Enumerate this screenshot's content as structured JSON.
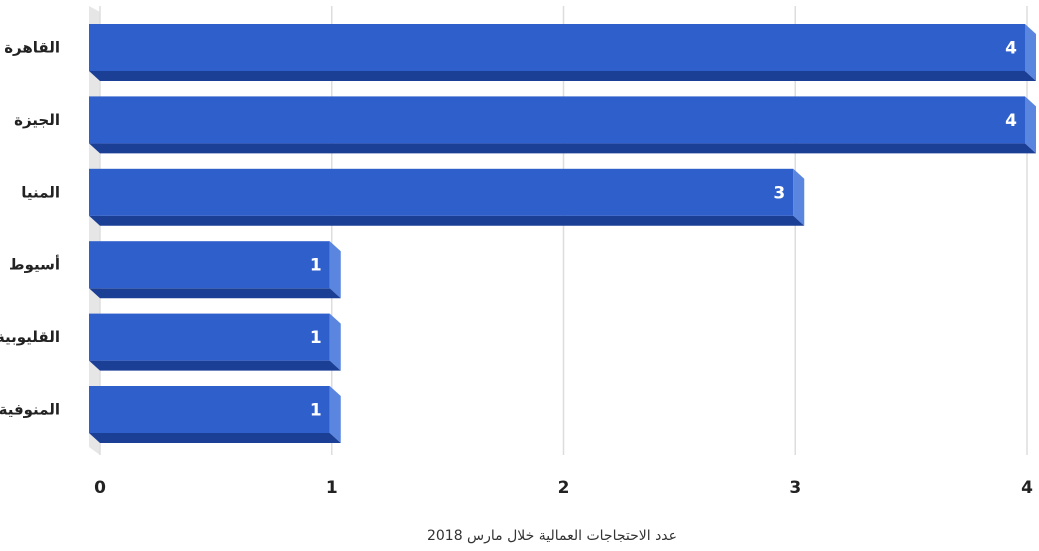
{
  "chart_data": {
    "type": "bar",
    "orientation": "horizontal",
    "categories": [
      "القاهرة",
      "الجيزة",
      "المنيا",
      "أسيوط",
      "القليوبية",
      "المنوفية"
    ],
    "values": [
      4,
      4,
      3,
      1,
      1,
      1
    ],
    "xlabel": "عدد الاحتجاجات العمالية خلال مارس 2018",
    "ylabel": "",
    "xlim": [
      0,
      4
    ],
    "xticks": [
      "0",
      "1",
      "2",
      "3",
      "4"
    ],
    "grid": true,
    "legend": "none",
    "data_labels": [
      "4",
      "4",
      "3",
      "1",
      "1",
      "1"
    ],
    "colors": {
      "bar_face": "#2f5fcb",
      "bar_side": "#5b86e0",
      "bar_bottom": "#1c3f96",
      "grid": "#dddddd",
      "floor": "#e6e6e6"
    }
  }
}
